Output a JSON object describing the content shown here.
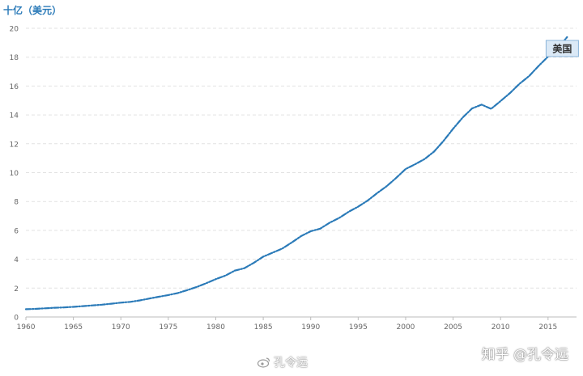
{
  "chart_data": {
    "type": "line",
    "ylabel": "十亿（美元）",
    "ylim": [
      0,
      20
    ],
    "yticks": [
      0,
      2,
      4,
      6,
      8,
      10,
      12,
      14,
      16,
      18,
      20
    ],
    "xlim": [
      1960,
      2018
    ],
    "xticks": [
      1960,
      1965,
      1970,
      1975,
      1980,
      1985,
      1990,
      1995,
      2000,
      2005,
      2010,
      2015
    ],
    "grid": true,
    "series": [
      {
        "name": "美国",
        "color": "#2a7ab8",
        "line_style": "dash-dot",
        "x": [
          1960,
          1961,
          1962,
          1963,
          1964,
          1965,
          1966,
          1967,
          1968,
          1969,
          1970,
          1971,
          1972,
          1973,
          1974,
          1975,
          1976,
          1977,
          1978,
          1979,
          1980,
          1981,
          1982,
          1983,
          1984,
          1985,
          1986,
          1987,
          1988,
          1989,
          1990,
          1991,
          1992,
          1993,
          1994,
          1995,
          1996,
          1997,
          1998,
          1999,
          2000,
          2001,
          2002,
          2003,
          2004,
          2005,
          2006,
          2007,
          2008,
          2009,
          2010,
          2011,
          2012,
          2013,
          2014,
          2015,
          2016,
          2017
        ],
        "y": [
          0.54,
          0.56,
          0.6,
          0.64,
          0.66,
          0.7,
          0.75,
          0.8,
          0.85,
          0.92,
          0.99,
          1.05,
          1.15,
          1.28,
          1.4,
          1.52,
          1.66,
          1.86,
          2.08,
          2.34,
          2.62,
          2.86,
          3.21,
          3.38,
          3.75,
          4.18,
          4.46,
          4.74,
          5.16,
          5.61,
          5.94,
          6.12,
          6.53,
          6.86,
          7.29,
          7.64,
          8.07,
          8.58,
          9.06,
          9.63,
          10.25,
          10.58,
          10.94,
          11.46,
          12.21,
          13.04,
          13.81,
          14.45,
          14.71,
          14.42,
          14.96,
          15.52,
          16.16,
          16.69,
          17.39,
          18.04,
          18.57,
          19.39
        ]
      }
    ],
    "annotation": {
      "text": "美国",
      "x": 2016.5,
      "y": 18.6
    }
  },
  "watermarks": {
    "right": "知乎 @孔令远",
    "bottom": "孔令远",
    "bottom_icon": "weibo-icon"
  }
}
